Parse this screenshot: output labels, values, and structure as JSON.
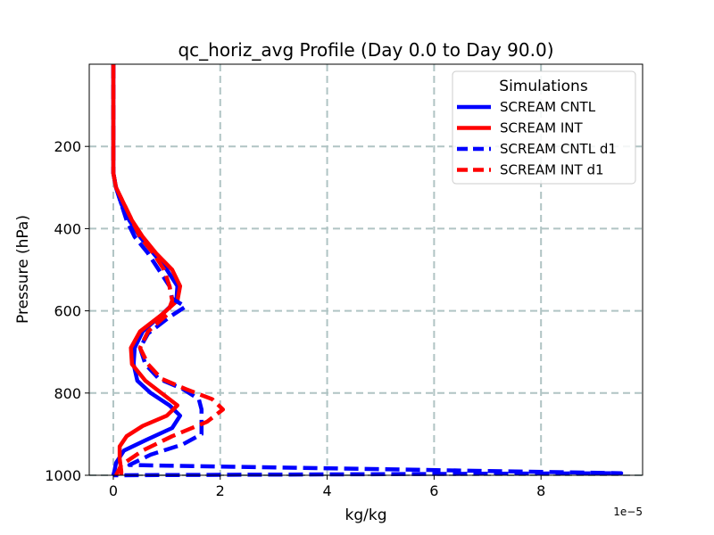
{
  "chart_data": {
    "type": "line",
    "title": "qc_horiz_avg Profile (Day 0.0 to Day 90.0)",
    "xlabel": "kg/kg",
    "ylabel": "Pressure (hPa)",
    "x_offset_label": "1e−5",
    "x_scale": 1e-05,
    "xlim": [
      -0.45,
      9.9
    ],
    "ylim": [
      1000,
      0
    ],
    "x_ticks": [
      0,
      2,
      4,
      6,
      8
    ],
    "x_tick_labels": [
      "0",
      "2",
      "4",
      "6",
      "8"
    ],
    "y_ticks": [
      200,
      400,
      600,
      800,
      1000
    ],
    "y_tick_labels": [
      "200",
      "400",
      "600",
      "800",
      "1000"
    ],
    "grid": true,
    "legend": {
      "title": "Simulations",
      "position": "top-right"
    },
    "series": [
      {
        "name": "SCREAM CNTL",
        "color": "#0000ff",
        "style": "solid",
        "points": [
          [
            0.0,
            0
          ],
          [
            0.0,
            100
          ],
          [
            0.0,
            200
          ],
          [
            0.0,
            265
          ],
          [
            0.05,
            300
          ],
          [
            0.15,
            340
          ],
          [
            0.3,
            380
          ],
          [
            0.5,
            420
          ],
          [
            0.75,
            460
          ],
          [
            1.0,
            500
          ],
          [
            1.2,
            540
          ],
          [
            1.18,
            575
          ],
          [
            0.9,
            610
          ],
          [
            0.55,
            650
          ],
          [
            0.4,
            690
          ],
          [
            0.38,
            730
          ],
          [
            0.45,
            770
          ],
          [
            0.7,
            800
          ],
          [
            1.05,
            830
          ],
          [
            1.25,
            855
          ],
          [
            1.1,
            885
          ],
          [
            0.6,
            915
          ],
          [
            0.2,
            940
          ],
          [
            0.05,
            970
          ],
          [
            0.02,
            990
          ],
          [
            0.0,
            1000
          ]
        ]
      },
      {
        "name": "SCREAM INT",
        "color": "#ff0000",
        "style": "solid",
        "points": [
          [
            0.0,
            0
          ],
          [
            0.0,
            100
          ],
          [
            0.0,
            200
          ],
          [
            0.0,
            265
          ],
          [
            0.05,
            300
          ],
          [
            0.2,
            340
          ],
          [
            0.35,
            380
          ],
          [
            0.55,
            420
          ],
          [
            0.8,
            460
          ],
          [
            1.1,
            500
          ],
          [
            1.25,
            540
          ],
          [
            1.2,
            575
          ],
          [
            0.9,
            610
          ],
          [
            0.5,
            650
          ],
          [
            0.33,
            690
          ],
          [
            0.35,
            730
          ],
          [
            0.6,
            770
          ],
          [
            0.95,
            805
          ],
          [
            1.2,
            830
          ],
          [
            1.0,
            855
          ],
          [
            0.55,
            880
          ],
          [
            0.25,
            905
          ],
          [
            0.12,
            930
          ],
          [
            0.12,
            960
          ],
          [
            0.15,
            990
          ],
          [
            0.15,
            1000
          ]
        ]
      },
      {
        "name": "SCREAM CNTL d1",
        "color": "#0000ff",
        "style": "dashed",
        "points": [
          [
            0.0,
            0
          ],
          [
            0.0,
            100
          ],
          [
            0.0,
            200
          ],
          [
            0.0,
            265
          ],
          [
            0.05,
            300
          ],
          [
            0.15,
            340
          ],
          [
            0.25,
            380
          ],
          [
            0.4,
            420
          ],
          [
            0.65,
            460
          ],
          [
            0.85,
            500
          ],
          [
            1.05,
            540
          ],
          [
            1.1,
            570
          ],
          [
            1.35,
            590
          ],
          [
            1.05,
            615
          ],
          [
            0.65,
            655
          ],
          [
            0.5,
            690
          ],
          [
            0.6,
            730
          ],
          [
            0.85,
            765
          ],
          [
            1.3,
            790
          ],
          [
            1.6,
            815
          ],
          [
            1.65,
            840
          ],
          [
            1.65,
            870
          ],
          [
            1.65,
            900
          ],
          [
            1.3,
            925
          ],
          [
            0.7,
            950
          ],
          [
            0.3,
            975
          ],
          [
            9.5,
            995
          ],
          [
            0.0,
            1000
          ]
        ]
      },
      {
        "name": "SCREAM INT d1",
        "color": "#ff0000",
        "style": "dashed",
        "points": [
          [
            0.0,
            0
          ],
          [
            0.0,
            100
          ],
          [
            0.0,
            200
          ],
          [
            0.0,
            265
          ],
          [
            0.05,
            300
          ],
          [
            0.2,
            340
          ],
          [
            0.35,
            380
          ],
          [
            0.5,
            420
          ],
          [
            0.75,
            460
          ],
          [
            0.95,
            500
          ],
          [
            1.05,
            540
          ],
          [
            1.1,
            575
          ],
          [
            1.0,
            610
          ],
          [
            0.65,
            650
          ],
          [
            0.5,
            690
          ],
          [
            0.65,
            730
          ],
          [
            0.9,
            765
          ],
          [
            1.35,
            790
          ],
          [
            1.85,
            815
          ],
          [
            2.05,
            840
          ],
          [
            1.75,
            870
          ],
          [
            1.1,
            905
          ],
          [
            0.55,
            940
          ],
          [
            0.15,
            975
          ],
          [
            0.05,
            1000
          ]
        ]
      }
    ]
  }
}
